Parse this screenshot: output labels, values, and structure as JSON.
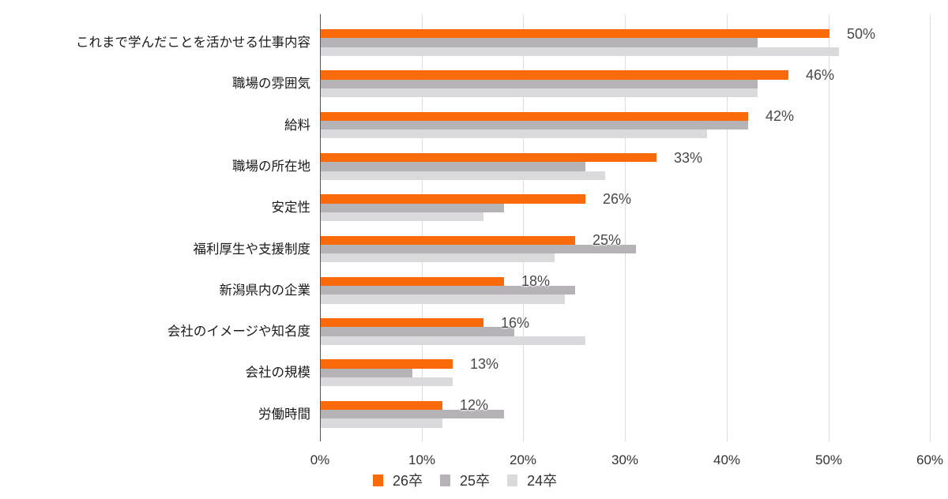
{
  "chart_data": {
    "type": "bar",
    "orientation": "horizontal",
    "title": "",
    "xlabel": "",
    "ylabel": "",
    "xlim": [
      0,
      60
    ],
    "x_ticks": [
      "0%",
      "10%",
      "20%",
      "30%",
      "40%",
      "50%",
      "60%"
    ],
    "grid": true,
    "legend_position": "bottom",
    "categories": [
      "これまで学んだことを活かせる仕事内容",
      "職場の雰囲気",
      "給料",
      "職場の所在地",
      "安定性",
      "福利厚生や支援制度",
      "新潟県内の企業",
      "会社のイメージや知名度",
      "会社の規模",
      "労働時間"
    ],
    "series": [
      {
        "name": "26卒",
        "color": "#fa6a0a",
        "values": [
          50,
          46,
          42,
          33,
          26,
          25,
          18,
          16,
          13,
          12
        ]
      },
      {
        "name": "25卒",
        "color": "#b5b3b6",
        "values": [
          43,
          43,
          42,
          26,
          18,
          31,
          25,
          19,
          9,
          18
        ]
      },
      {
        "name": "24卒",
        "color": "#dad9dc",
        "values": [
          51,
          43,
          38,
          28,
          16,
          23,
          24,
          26,
          13,
          12
        ]
      }
    ],
    "data_labels": [
      "50%",
      "46%",
      "42%",
      "33%",
      "26%",
      "25%",
      "18%",
      "16%",
      "13%",
      "12%"
    ],
    "data_labels_series": "26卒"
  },
  "legend": {
    "items": [
      {
        "label": "26卒",
        "color": "#fa6a0a"
      },
      {
        "label": "25卒",
        "color": "#b5b3b6"
      },
      {
        "label": "24卒",
        "color": "#dad9dc"
      }
    ]
  }
}
